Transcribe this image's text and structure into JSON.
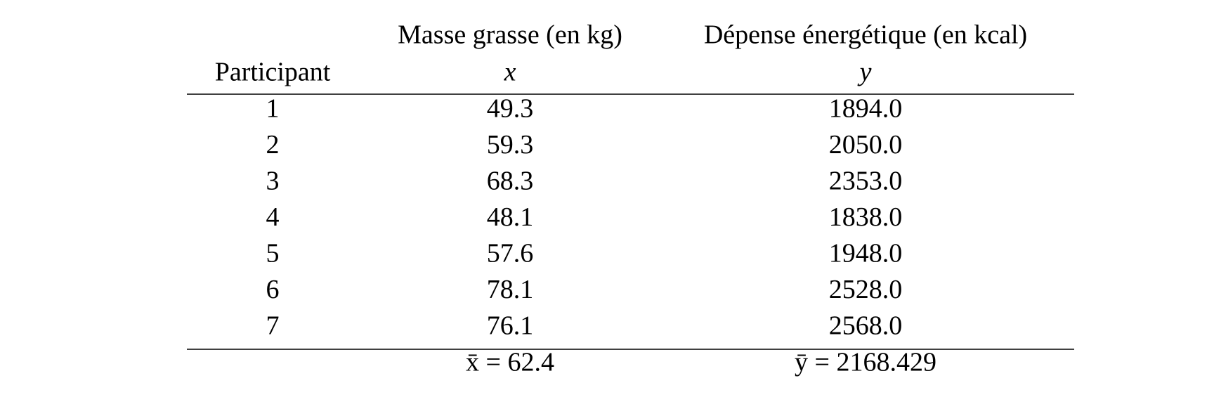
{
  "table": {
    "header": [
      [
        "",
        "Masse grasse (en kg)",
        "Dépense énergétique (en kcal)"
      ],
      [
        "Participant",
        "x",
        "y"
      ]
    ],
    "rows": [
      [
        "1",
        "49.3",
        "1894.0"
      ],
      [
        "2",
        "59.3",
        "2050.0"
      ],
      [
        "3",
        "68.3",
        "2353.0"
      ],
      [
        "4",
        "48.1",
        "1838.0"
      ],
      [
        "5",
        "57.6",
        "1948.0"
      ],
      [
        "6",
        "78.1",
        "2528.0"
      ],
      [
        "7",
        "76.1",
        "2568.0"
      ]
    ],
    "footer": [
      "",
      "x̄ = 62.4",
      "ȳ = 2168.429"
    ]
  }
}
